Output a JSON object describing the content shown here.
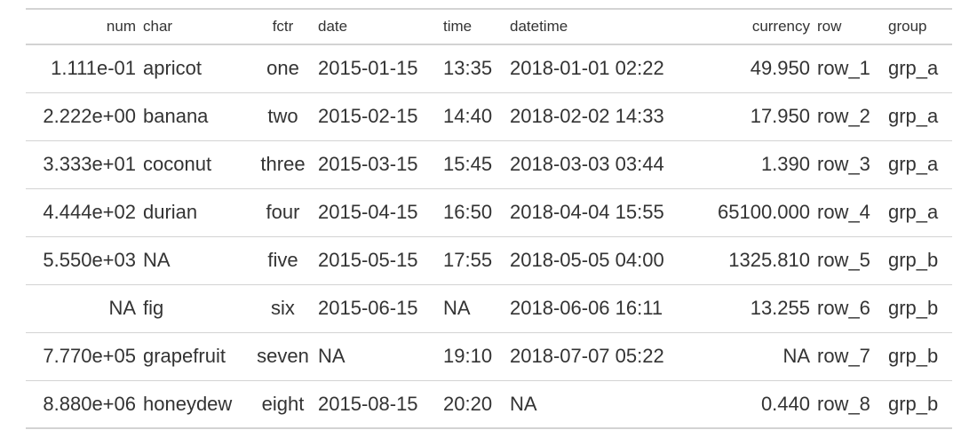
{
  "table": {
    "columns": [
      {
        "key": "num",
        "label": "num"
      },
      {
        "key": "char",
        "label": "char"
      },
      {
        "key": "fctr",
        "label": "fctr"
      },
      {
        "key": "date",
        "label": "date"
      },
      {
        "key": "time",
        "label": "time"
      },
      {
        "key": "datetime",
        "label": "datetime"
      },
      {
        "key": "currency",
        "label": "currency"
      },
      {
        "key": "row",
        "label": "row"
      },
      {
        "key": "group",
        "label": "group"
      }
    ],
    "rows": [
      {
        "num": "1.111e-01",
        "char": "apricot",
        "fctr": "one",
        "date": "2015-01-15",
        "time": "13:35",
        "datetime": "2018-01-01 02:22",
        "currency": "49.950",
        "row": "row_1",
        "group": "grp_a"
      },
      {
        "num": "2.222e+00",
        "char": "banana",
        "fctr": "two",
        "date": "2015-02-15",
        "time": "14:40",
        "datetime": "2018-02-02 14:33",
        "currency": "17.950",
        "row": "row_2",
        "group": "grp_a"
      },
      {
        "num": "3.333e+01",
        "char": "coconut",
        "fctr": "three",
        "date": "2015-03-15",
        "time": "15:45",
        "datetime": "2018-03-03 03:44",
        "currency": "1.390",
        "row": "row_3",
        "group": "grp_a"
      },
      {
        "num": "4.444e+02",
        "char": "durian",
        "fctr": "four",
        "date": "2015-04-15",
        "time": "16:50",
        "datetime": "2018-04-04 15:55",
        "currency": "65100.000",
        "row": "row_4",
        "group": "grp_a"
      },
      {
        "num": "5.550e+03",
        "char": "NA",
        "fctr": "five",
        "date": "2015-05-15",
        "time": "17:55",
        "datetime": "2018-05-05 04:00",
        "currency": "1325.810",
        "row": "row_5",
        "group": "grp_b"
      },
      {
        "num": "NA",
        "char": "fig",
        "fctr": "six",
        "date": "2015-06-15",
        "time": "NA",
        "datetime": "2018-06-06 16:11",
        "currency": "13.255",
        "row": "row_6",
        "group": "grp_b"
      },
      {
        "num": "7.770e+05",
        "char": "grapefruit",
        "fctr": "seven",
        "date": "NA",
        "time": "19:10",
        "datetime": "2018-07-07 05:22",
        "currency": "NA",
        "row": "row_7",
        "group": "grp_b"
      },
      {
        "num": "8.880e+06",
        "char": "honeydew",
        "fctr": "eight",
        "date": "2015-08-15",
        "time": "20:20",
        "datetime": "NA",
        "currency": "0.440",
        "row": "row_8",
        "group": "grp_b"
      }
    ]
  }
}
